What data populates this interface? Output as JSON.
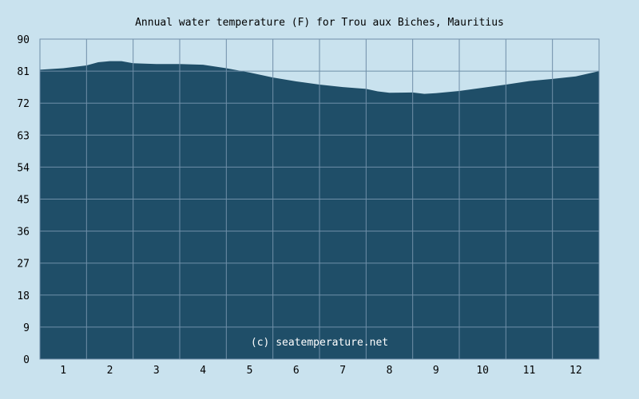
{
  "chart_data": {
    "type": "area",
    "title": "Annual water temperature (F) for Trou aux Biches, Mauritius",
    "credit": "(c) seatemperature.net",
    "xlabel": "",
    "ylabel": "",
    "categories": [
      "1",
      "2",
      "3",
      "4",
      "5",
      "6",
      "7",
      "8",
      "9",
      "10",
      "11",
      "12"
    ],
    "xlim": [
      0.5,
      12.5
    ],
    "ylim": [
      0,
      90
    ],
    "yticks": [
      0,
      9,
      18,
      27,
      36,
      45,
      54,
      63,
      72,
      81,
      90
    ],
    "grid": true,
    "x": [
      0.5,
      1.0,
      1.5,
      1.75,
      2.0,
      2.25,
      2.5,
      3.0,
      3.5,
      4.0,
      4.5,
      5.0,
      5.5,
      6.0,
      6.5,
      7.0,
      7.5,
      7.75,
      8.0,
      8.5,
      8.75,
      9.0,
      9.5,
      10.0,
      10.5,
      11.0,
      11.5,
      12.0,
      12.5
    ],
    "values": [
      81.4,
      81.8,
      82.6,
      83.5,
      83.8,
      83.8,
      83.2,
      83.0,
      83.0,
      82.8,
      81.8,
      80.6,
      79.2,
      78.1,
      77.2,
      76.5,
      76.0,
      75.3,
      74.9,
      75.0,
      74.6,
      74.8,
      75.4,
      76.3,
      77.2,
      78.2,
      78.8,
      79.5,
      81.0
    ],
    "colors": {
      "background": "#c9e2ee",
      "area": "#1f4e68",
      "grid": "#6f8fa8"
    }
  }
}
